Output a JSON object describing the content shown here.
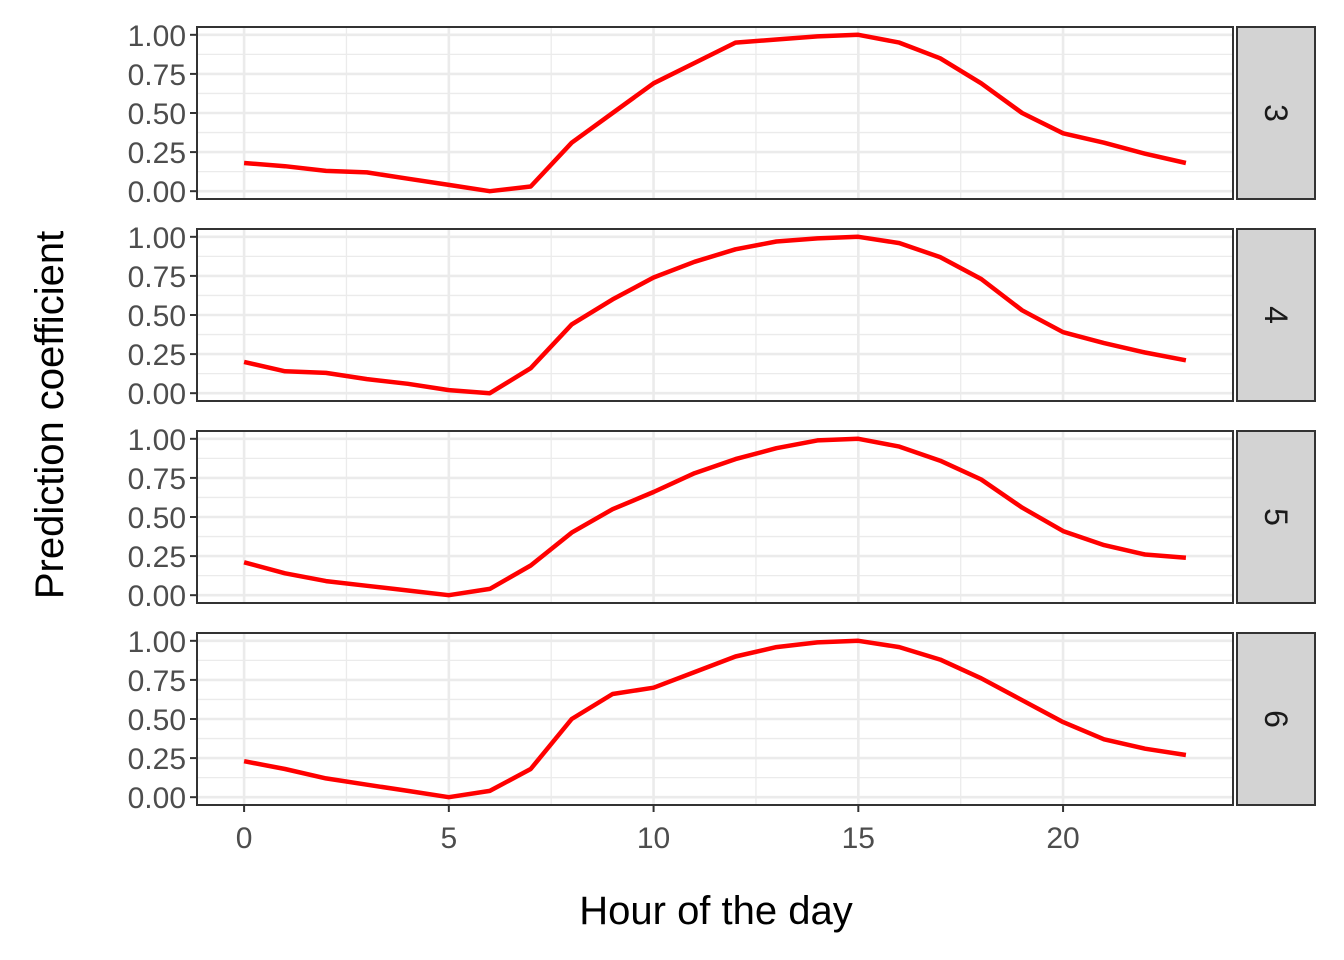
{
  "chart_data": {
    "type": "line",
    "layout": "facet-rows",
    "xlabel": "Hour of the day",
    "ylabel": "Prediction coefficient",
    "xlim": [
      -1.15,
      24.15
    ],
    "ylim": [
      -0.05,
      1.05
    ],
    "x_ticks": [
      0,
      5,
      10,
      15,
      20
    ],
    "y_ticks": [
      0.0,
      0.25,
      0.5,
      0.75,
      1.0
    ],
    "y_tick_labels": [
      "0.00",
      "0.25",
      "0.50",
      "0.75",
      "1.00"
    ],
    "grid": true,
    "line_color": "#ff0000",
    "strip_color": "#d3d3d3",
    "x": [
      0,
      1,
      2,
      3,
      4,
      5,
      6,
      7,
      8,
      9,
      10,
      11,
      12,
      13,
      14,
      15,
      16,
      17,
      18,
      19,
      20,
      21,
      22,
      23
    ],
    "panels": [
      {
        "strip": "3",
        "values": [
          0.18,
          0.16,
          0.13,
          0.12,
          0.08,
          0.04,
          0.0,
          0.03,
          0.31,
          0.5,
          0.69,
          0.82,
          0.95,
          0.97,
          0.99,
          1.0,
          0.95,
          0.85,
          0.69,
          0.5,
          0.37,
          0.31,
          0.24,
          0.18
        ]
      },
      {
        "strip": "4",
        "values": [
          0.2,
          0.14,
          0.13,
          0.09,
          0.06,
          0.02,
          0.0,
          0.16,
          0.44,
          0.6,
          0.74,
          0.84,
          0.92,
          0.97,
          0.99,
          1.0,
          0.96,
          0.87,
          0.73,
          0.53,
          0.39,
          0.32,
          0.26,
          0.21
        ]
      },
      {
        "strip": "5",
        "values": [
          0.21,
          0.14,
          0.09,
          0.06,
          0.03,
          0.0,
          0.04,
          0.19,
          0.4,
          0.55,
          0.66,
          0.78,
          0.87,
          0.94,
          0.99,
          1.0,
          0.95,
          0.86,
          0.74,
          0.56,
          0.41,
          0.32,
          0.26,
          0.24
        ]
      },
      {
        "strip": "6",
        "values": [
          0.23,
          0.18,
          0.12,
          0.08,
          0.04,
          0.0,
          0.04,
          0.18,
          0.5,
          0.66,
          0.7,
          0.8,
          0.9,
          0.96,
          0.99,
          1.0,
          0.96,
          0.88,
          0.76,
          0.62,
          0.48,
          0.37,
          0.31,
          0.27
        ]
      }
    ]
  }
}
